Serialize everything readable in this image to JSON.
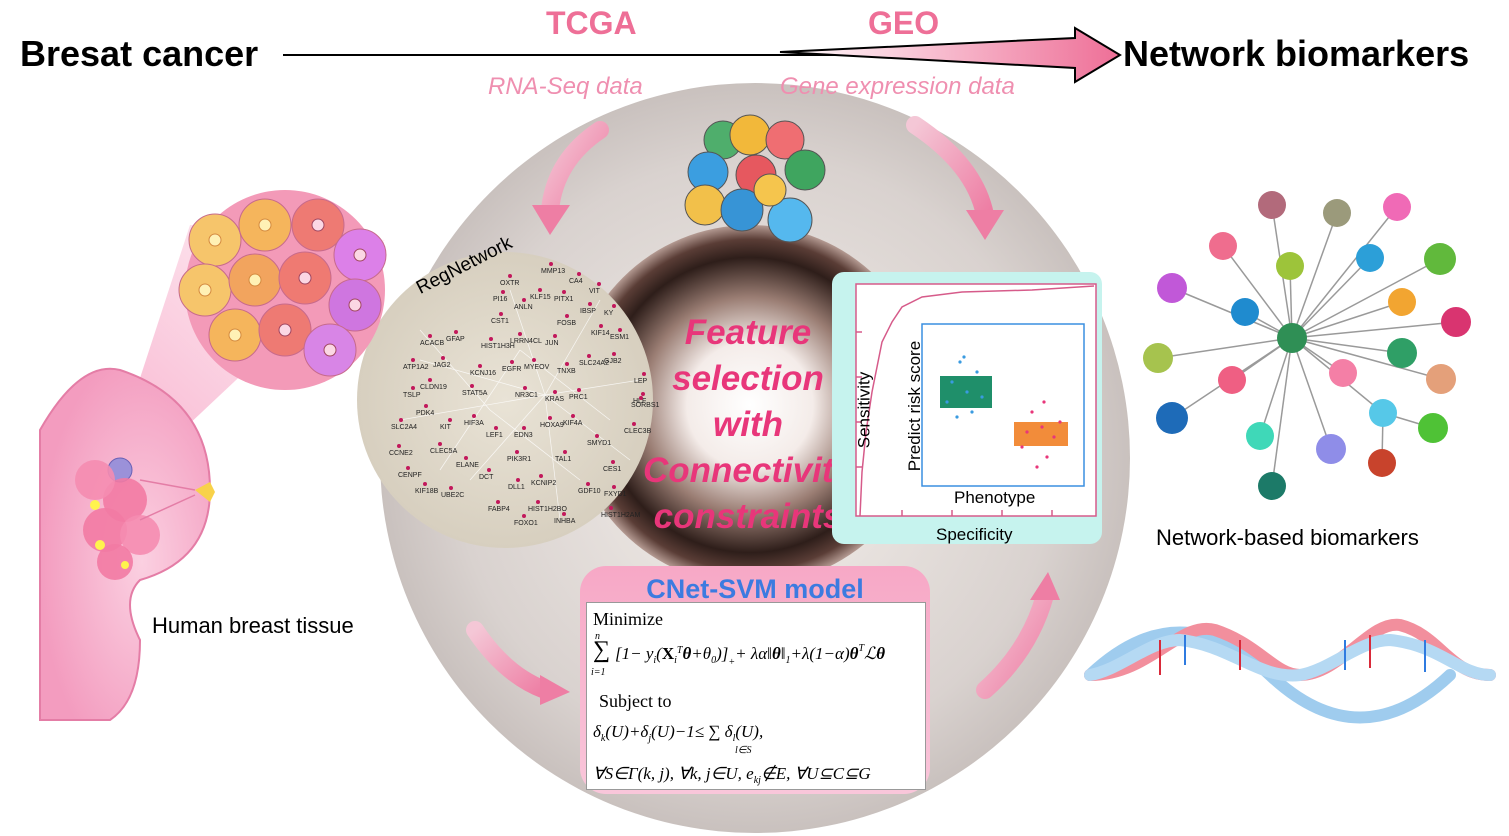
{
  "header": {
    "left_title": "Bresat cancer",
    "right_title": "Network biomarkers",
    "source_1": {
      "name": "TCGA",
      "subtitle": "RNA-Seq data"
    },
    "source_2": {
      "name": "GEO",
      "subtitle": "Gene expression data"
    }
  },
  "left_panel": {
    "label": "Human breast tissue"
  },
  "center": {
    "feature_text": [
      "Feature",
      "selection",
      "with",
      "Connectivity",
      "constraints"
    ],
    "regnetwork": {
      "title": "RegNetwork",
      "genes": [
        "MMP13",
        "CA4",
        "OXTR",
        "VIT",
        "PI16",
        "KLF15",
        "PITX1",
        "ANLN",
        "IBSP",
        "KY",
        "CST1",
        "FOSB",
        "KIF14",
        "ESM1",
        "HIST1H3H",
        "LRRN4CL",
        "JUN",
        "ACACB",
        "GFAP",
        "SLC24A2",
        "GJB2",
        "ATP1A2",
        "JAG2",
        "MYEOV",
        "KCNJ16",
        "EGFR",
        "TNXB",
        "LEP",
        "TSLP",
        "CLDN19",
        "STAT5A",
        "NR3C1",
        "KRAS",
        "PRC1",
        "HLF",
        "PDK4",
        "SORBS1",
        "SLC2A4",
        "KIT",
        "HIF3A",
        "HOXA9",
        "KIF4A",
        "CLEC3B",
        "LEF1",
        "EDN3",
        "CCNE2",
        "CLEC5A",
        "SMYD1",
        "PIK3R1",
        "TAL1",
        "ELANE",
        "CES1",
        "CENPF",
        "DCT",
        "KIF18B",
        "DLL1",
        "KCNIP2",
        "GDF10",
        "UBE2C",
        "FXYD1",
        "FABP4",
        "HIST1H2BO",
        "HIST1H2AM",
        "FOXO1",
        "INHBA"
      ]
    },
    "roc_panel": {
      "xlabel": "Specificity",
      "ylabel": "Sensitivity",
      "inner_xlabel": "Phenotype",
      "inner_ylabel": "Predict risk score"
    },
    "model": {
      "title": "CNet-SVM model",
      "minimize_label": "Minimize",
      "subject_label": "Subject to"
    }
  },
  "right_panel": {
    "label": "Network-based biomarkers"
  },
  "colors": {
    "accent_pink": "#ee6f97",
    "feature_text": "#e8367a",
    "model_title": "#3c7be0",
    "model_box": "#f7a8c6",
    "roc_box": "#c6f3ee"
  }
}
